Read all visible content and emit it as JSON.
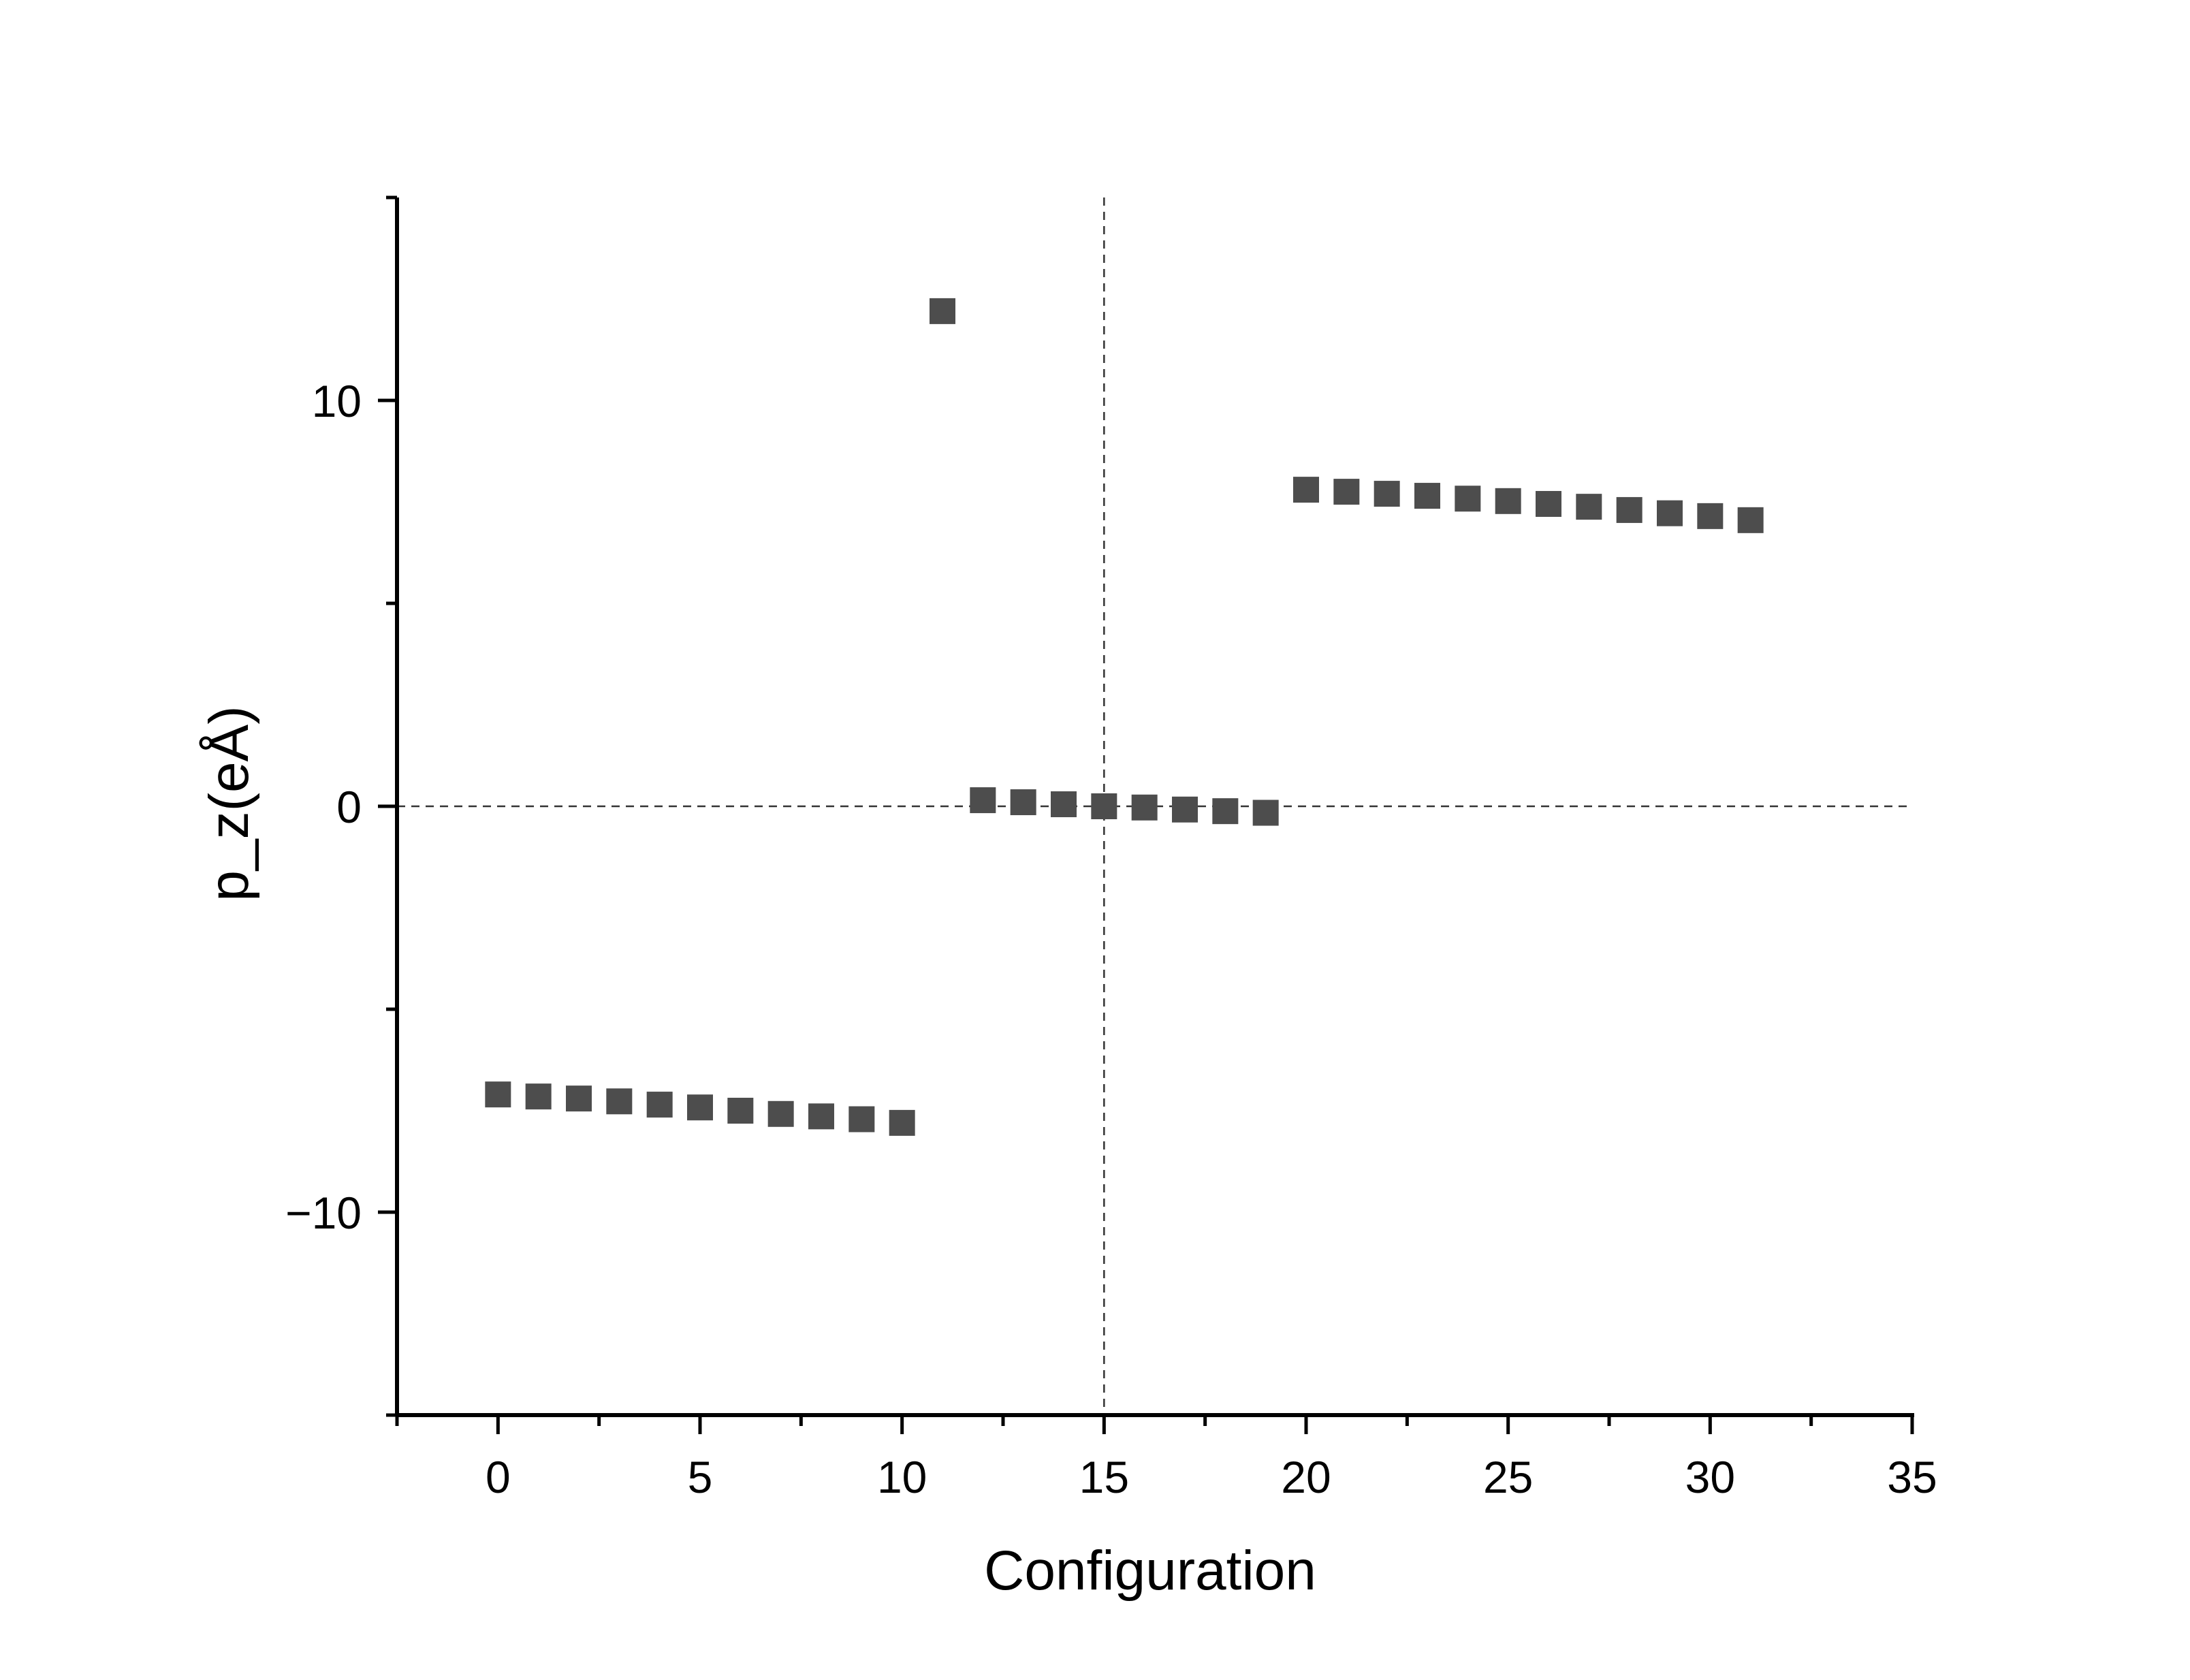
{
  "chart_data": {
    "type": "scatter",
    "xlabel": "Configuration",
    "ylabel": "p_z(eÅ)",
    "xlim": [
      -2.5,
      35
    ],
    "ylim": [
      -15,
      15
    ],
    "x_ticks": [
      0,
      5,
      10,
      15,
      20,
      25,
      30,
      35
    ],
    "x_tick_labels": [
      "0",
      "5",
      "10",
      "15",
      "20",
      "25",
      "30",
      "35"
    ],
    "x_minor_ticks": [
      -2.5,
      2.5,
      7.5,
      12.5,
      17.5,
      22.5,
      27.5,
      32.5
    ],
    "y_ticks": [
      -10,
      0,
      10
    ],
    "y_tick_labels": [
      "−10",
      "0",
      "10"
    ],
    "y_minor_ticks": [
      -15,
      -5,
      5,
      15
    ],
    "reference_lines": {
      "x": 15,
      "y": 0,
      "style": "dashed"
    },
    "grid": false,
    "marker": "square",
    "marker_color": "#4d4d4d",
    "series": [
      {
        "x": [
          0,
          1,
          2,
          3,
          4,
          5,
          6,
          7,
          8,
          9,
          10,
          11,
          12,
          13,
          14,
          15,
          16,
          17,
          18,
          19,
          20,
          21,
          22,
          23,
          24,
          25,
          26,
          27,
          28,
          29,
          30,
          31
        ],
        "y": [
          -7.1,
          -7.15,
          -7.2,
          -7.27,
          -7.35,
          -7.42,
          -7.5,
          -7.58,
          -7.64,
          -7.71,
          -7.8,
          12.2,
          0.15,
          0.1,
          0.05,
          0.0,
          -0.03,
          -0.08,
          -0.12,
          -0.16,
          7.8,
          7.75,
          7.7,
          7.65,
          7.58,
          7.52,
          7.45,
          7.38,
          7.3,
          7.22,
          7.15,
          7.05
        ]
      }
    ]
  }
}
